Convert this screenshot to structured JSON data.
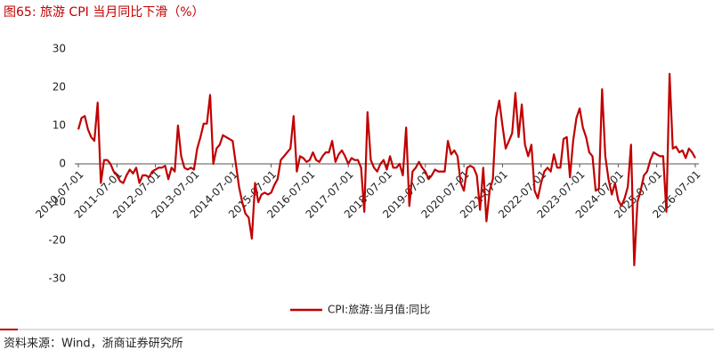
{
  "chart_data": {
    "type": "line",
    "title": "图65:  旅游 CPI 当月同比下滑（%）",
    "source": "资料来源：Wind，浙商证券研究所",
    "xlim": [
      "2010-07-01",
      "2026-07-01"
    ],
    "xticks": [
      "2010-07-01",
      "2011-07-01",
      "2012-07-01",
      "2013-07-01",
      "2014-07-01",
      "2015-07-01",
      "2016-07-01",
      "2017-07-01",
      "2018-07-01",
      "2019-07-01",
      "2020-07-01",
      "2021-07-01",
      "2022-07-01",
      "2023-07-01",
      "2024-07-01",
      "2025-07-01",
      "2026-07-01"
    ],
    "ylim": [
      -30,
      30
    ],
    "yticks": [
      30,
      20,
      10,
      0,
      -10,
      -20,
      -30
    ],
    "grid": false,
    "legend": "bottom",
    "x": [
      "2010-07-01",
      "2010-08-01",
      "2010-09-01",
      "2010-10-01",
      "2010-11-01",
      "2010-12-01",
      "2011-01-01",
      "2011-02-01",
      "2011-03-01",
      "2011-04-01",
      "2011-05-01",
      "2011-06-01",
      "2011-07-01",
      "2011-08-01",
      "2011-09-01",
      "2011-10-01",
      "2011-11-01",
      "2011-12-01",
      "2012-01-01",
      "2012-02-01",
      "2012-03-01",
      "2012-04-01",
      "2012-05-01",
      "2012-06-01",
      "2012-07-01",
      "2012-08-01",
      "2012-09-01",
      "2012-10-01",
      "2012-11-01",
      "2012-12-01",
      "2013-01-01",
      "2013-02-01",
      "2013-03-01",
      "2013-04-01",
      "2013-05-01",
      "2013-06-01",
      "2013-07-01",
      "2013-08-01",
      "2013-09-01",
      "2013-10-01",
      "2013-11-01",
      "2013-12-01",
      "2014-01-01",
      "2014-02-01",
      "2014-03-01",
      "2014-04-01",
      "2014-05-01",
      "2014-06-01",
      "2014-07-01",
      "2014-08-01",
      "2014-09-01",
      "2014-10-01",
      "2014-11-01",
      "2014-12-01",
      "2015-01-01",
      "2015-02-01",
      "2015-03-01",
      "2015-04-01",
      "2015-05-01",
      "2015-06-01",
      "2015-07-01",
      "2015-08-01",
      "2015-09-01",
      "2015-10-01",
      "2015-11-01",
      "2015-12-01",
      "2016-01-01",
      "2016-02-01",
      "2016-03-01",
      "2016-04-01",
      "2016-05-01",
      "2016-06-01",
      "2016-07-01",
      "2016-08-01",
      "2016-09-01",
      "2016-10-01",
      "2016-11-01",
      "2016-12-01",
      "2017-01-01",
      "2017-02-01",
      "2017-03-01",
      "2017-04-01",
      "2017-05-01",
      "2017-06-01",
      "2017-07-01",
      "2017-08-01",
      "2017-09-01",
      "2017-10-01",
      "2017-11-01",
      "2017-12-01",
      "2018-01-01",
      "2018-02-01",
      "2018-03-01",
      "2018-04-01",
      "2018-05-01",
      "2018-06-01",
      "2018-07-01",
      "2018-08-01",
      "2018-09-01",
      "2018-10-01",
      "2018-11-01",
      "2018-12-01",
      "2019-01-01",
      "2019-02-01",
      "2019-03-01",
      "2019-04-01",
      "2019-05-01",
      "2019-06-01",
      "2019-07-01",
      "2019-08-01",
      "2019-09-01",
      "2019-10-01",
      "2019-11-01",
      "2019-12-01",
      "2020-01-01",
      "2020-02-01",
      "2020-03-01",
      "2020-04-01",
      "2020-05-01",
      "2020-06-01",
      "2020-07-01",
      "2020-08-01",
      "2020-09-01",
      "2020-10-01",
      "2020-11-01",
      "2020-12-01",
      "2021-01-01",
      "2021-02-01",
      "2021-03-01",
      "2021-04-01",
      "2021-05-01",
      "2021-06-01",
      "2021-07-01",
      "2021-08-01",
      "2021-09-01",
      "2021-10-01",
      "2021-11-01",
      "2021-12-01",
      "2022-01-01",
      "2022-02-01",
      "2022-03-01",
      "2022-04-01",
      "2022-05-01",
      "2022-06-01",
      "2022-07-01",
      "2022-08-01",
      "2022-09-01",
      "2022-10-01",
      "2022-11-01",
      "2022-12-01",
      "2023-01-01",
      "2023-02-01",
      "2023-03-01",
      "2023-04-01",
      "2023-05-01",
      "2023-06-01",
      "2023-07-01",
      "2023-08-01",
      "2023-09-01",
      "2023-10-01",
      "2023-11-01",
      "2023-12-01",
      "2024-01-01",
      "2024-02-01",
      "2024-03-01",
      "2024-04-01",
      "2024-05-01",
      "2024-06-01",
      "2024-07-01",
      "2024-08-01",
      "2024-09-01",
      "2024-10-01",
      "2024-11-01",
      "2024-12-01",
      "2025-01-01",
      "2025-02-01",
      "2025-03-01",
      "2025-04-01",
      "2025-05-01",
      "2025-06-01",
      "2025-07-01",
      "2025-08-01",
      "2025-09-01",
      "2025-10-01",
      "2025-11-01",
      "2025-12-01",
      "2026-01-01",
      "2026-02-01",
      "2026-03-01",
      "2026-04-01",
      "2026-05-01",
      "2026-06-01",
      "2026-07-01"
    ],
    "series": [
      {
        "name": "CPI:旅游:当月值:同比",
        "color": "#c00000",
        "values": [
          9,
          12,
          12.5,
          9,
          7,
          6,
          16,
          -5,
          1,
          1,
          0,
          -2,
          -3,
          -4.5,
          -5,
          -3,
          -1.5,
          -2.5,
          -1,
          -5,
          -3,
          -3,
          -3.5,
          -2,
          -1.5,
          -1,
          -1,
          -0.5,
          -4,
          -1,
          -2,
          10,
          2,
          -1,
          -1.5,
          -1,
          -1.5,
          4,
          7,
          10.5,
          10.5,
          18,
          0,
          4,
          5,
          7.5,
          7,
          6.5,
          6,
          0,
          -6,
          -10,
          -13,
          -14,
          -19.5,
          -5,
          -10,
          -8,
          -7.5,
          -8,
          -7.5,
          -5.5,
          -4,
          1,
          2,
          3,
          4,
          12.5,
          -2,
          2,
          1.5,
          0.5,
          1,
          3,
          1,
          0.5,
          2,
          3,
          3,
          6,
          0.5,
          2.5,
          3.5,
          2,
          0,
          1.5,
          1,
          1,
          -1,
          -12.5,
          13.5,
          1,
          -1,
          -2,
          0,
          1,
          -1.5,
          2,
          -1,
          -1,
          0,
          -3,
          9.5,
          -11,
          -2,
          -1,
          0.5,
          -1,
          -2,
          -4,
          -3,
          -1.5,
          -2,
          -2,
          -2,
          6,
          2.5,
          3.5,
          2,
          -5,
          -7,
          -1,
          -0.5,
          -1,
          -3,
          -12,
          -1,
          -15,
          -7,
          -4,
          12,
          16.5,
          10,
          4,
          6,
          8,
          18.5,
          7,
          15.5,
          5,
          2,
          5,
          -7,
          -9,
          -5,
          -2,
          -1,
          -2,
          2.5,
          -1,
          -1,
          6.5,
          7,
          -3.5,
          6,
          12,
          14.5,
          9.5,
          7,
          3,
          2,
          -7,
          -6.5,
          19.5,
          2,
          -4,
          -8,
          -5,
          -9.5,
          -11,
          -9,
          -6,
          5,
          -26.5,
          -10,
          -7,
          -3,
          -2,
          1,
          3,
          2.5,
          2,
          2,
          -12.5,
          23.5,
          4,
          4.5,
          3,
          3.5,
          1.5,
          4,
          3,
          1.5
        ]
      }
    ]
  }
}
